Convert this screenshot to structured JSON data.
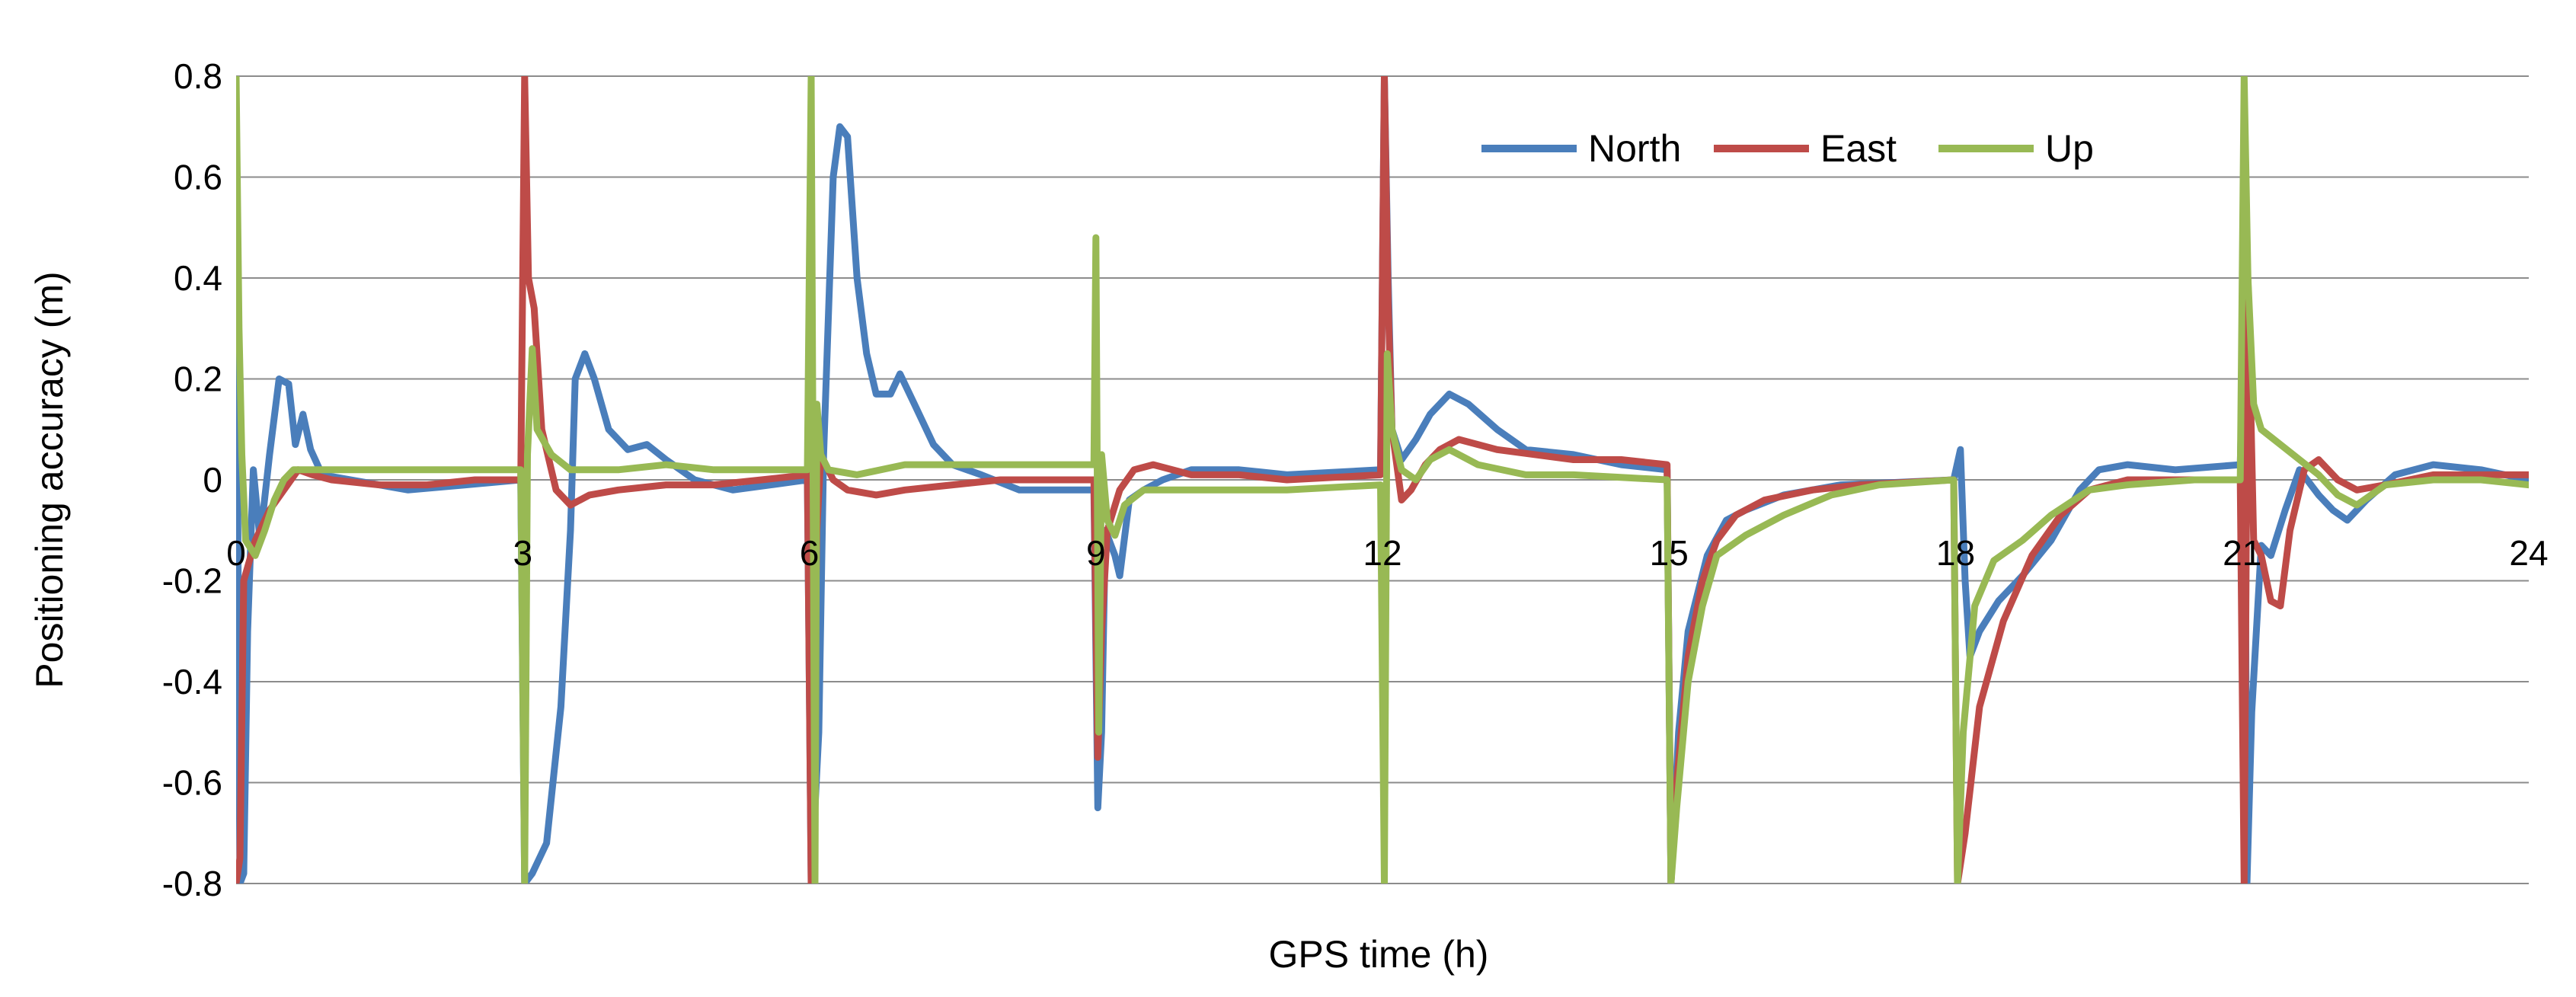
{
  "chart_data": {
    "type": "line",
    "title": "",
    "xlabel": "GPS time (h)",
    "ylabel": "Positioning accuracy (m)",
    "xlim": [
      0,
      24
    ],
    "ylim": [
      -0.8,
      0.8
    ],
    "xticks": [
      0,
      3,
      6,
      9,
      12,
      15,
      18,
      21,
      24
    ],
    "yticks": [
      -0.8,
      -0.6,
      -0.4,
      -0.2,
      0,
      0.2,
      0.4,
      0.6,
      0.8
    ],
    "ytick_labels": [
      "-0.8",
      "-0.6",
      "-0.4",
      "-0.2",
      "0",
      "0.2",
      "0.4",
      "0.6",
      "0.8"
    ],
    "grid": "horizontal",
    "legend_position": "top-center",
    "series": [
      {
        "name": "North",
        "color": "#4a7ebb",
        "points": [
          [
            0,
            0.5
          ],
          [
            0.04,
            -0.8
          ],
          [
            0.08,
            -0.78
          ],
          [
            0.12,
            -0.3
          ],
          [
            0.18,
            0.02
          ],
          [
            0.25,
            -0.12
          ],
          [
            0.35,
            0.05
          ],
          [
            0.45,
            0.2
          ],
          [
            0.55,
            0.19
          ],
          [
            0.62,
            0.07
          ],
          [
            0.7,
            0.13
          ],
          [
            0.78,
            0.06
          ],
          [
            0.9,
            0.01
          ],
          [
            1.2,
            0.0
          ],
          [
            1.8,
            -0.02
          ],
          [
            2.4,
            -0.01
          ],
          [
            2.98,
            0.0
          ],
          [
            3.02,
            -0.8
          ],
          [
            3.1,
            -0.78
          ],
          [
            3.25,
            -0.72
          ],
          [
            3.4,
            -0.45
          ],
          [
            3.5,
            -0.1
          ],
          [
            3.55,
            0.2
          ],
          [
            3.65,
            0.25
          ],
          [
            3.75,
            0.2
          ],
          [
            3.9,
            0.1
          ],
          [
            4.1,
            0.06
          ],
          [
            4.3,
            0.07
          ],
          [
            4.5,
            0.04
          ],
          [
            4.8,
            0.0
          ],
          [
            5.2,
            -0.02
          ],
          [
            5.6,
            -0.01
          ],
          [
            5.98,
            0.0
          ],
          [
            6.02,
            -0.8
          ],
          [
            6.1,
            -0.5
          ],
          [
            6.15,
            0.05
          ],
          [
            6.25,
            0.6
          ],
          [
            6.32,
            0.7
          ],
          [
            6.4,
            0.68
          ],
          [
            6.5,
            0.4
          ],
          [
            6.6,
            0.25
          ],
          [
            6.7,
            0.17
          ],
          [
            6.85,
            0.17
          ],
          [
            6.95,
            0.21
          ],
          [
            7.1,
            0.15
          ],
          [
            7.3,
            0.07
          ],
          [
            7.5,
            0.03
          ],
          [
            7.8,
            0.01
          ],
          [
            8.2,
            -0.02
          ],
          [
            8.98,
            -0.02
          ],
          [
            9.02,
            -0.65
          ],
          [
            9.06,
            -0.5
          ],
          [
            9.1,
            -0.1
          ],
          [
            9.2,
            -0.15
          ],
          [
            9.25,
            -0.19
          ],
          [
            9.35,
            -0.04
          ],
          [
            9.5,
            -0.02
          ],
          [
            9.7,
            0.0
          ],
          [
            10.0,
            0.02
          ],
          [
            10.5,
            0.02
          ],
          [
            11.0,
            0.01
          ],
          [
            11.98,
            0.02
          ],
          [
            12.02,
            0.8
          ],
          [
            12.06,
            0.4
          ],
          [
            12.1,
            0.1
          ],
          [
            12.2,
            0.04
          ],
          [
            12.35,
            0.08
          ],
          [
            12.5,
            0.13
          ],
          [
            12.7,
            0.17
          ],
          [
            12.9,
            0.15
          ],
          [
            13.2,
            0.1
          ],
          [
            13.5,
            0.06
          ],
          [
            14.0,
            0.05
          ],
          [
            14.5,
            0.03
          ],
          [
            14.98,
            0.02
          ],
          [
            15.02,
            -0.8
          ],
          [
            15.1,
            -0.5
          ],
          [
            15.2,
            -0.3
          ],
          [
            15.4,
            -0.15
          ],
          [
            15.6,
            -0.08
          ],
          [
            15.8,
            -0.06
          ],
          [
            16.2,
            -0.03
          ],
          [
            16.8,
            -0.01
          ],
          [
            17.98,
            0.0
          ],
          [
            18.05,
            0.06
          ],
          [
            18.1,
            -0.2
          ],
          [
            18.15,
            -0.35
          ],
          [
            18.25,
            -0.3
          ],
          [
            18.45,
            -0.24
          ],
          [
            18.7,
            -0.19
          ],
          [
            19.0,
            -0.12
          ],
          [
            19.3,
            -0.02
          ],
          [
            19.5,
            0.02
          ],
          [
            19.8,
            0.03
          ],
          [
            20.3,
            0.02
          ],
          [
            20.98,
            0.03
          ],
          [
            21.02,
            0.35
          ],
          [
            21.05,
            -0.8
          ],
          [
            21.1,
            -0.46
          ],
          [
            21.2,
            -0.13
          ],
          [
            21.3,
            -0.15
          ],
          [
            21.45,
            -0.06
          ],
          [
            21.6,
            0.02
          ],
          [
            21.8,
            -0.03
          ],
          [
            21.95,
            -0.06
          ],
          [
            22.1,
            -0.08
          ],
          [
            22.3,
            -0.04
          ],
          [
            22.6,
            0.01
          ],
          [
            23.0,
            0.03
          ],
          [
            23.5,
            0.02
          ],
          [
            24,
            0.0
          ]
        ]
      },
      {
        "name": "East",
        "color": "#be4b48",
        "points": [
          [
            0,
            -0.8
          ],
          [
            0.04,
            -0.75
          ],
          [
            0.08,
            -0.2
          ],
          [
            0.2,
            -0.12
          ],
          [
            0.35,
            -0.06
          ],
          [
            0.5,
            -0.02
          ],
          [
            0.65,
            0.02
          ],
          [
            0.8,
            0.01
          ],
          [
            1.0,
            0.0
          ],
          [
            1.5,
            -0.01
          ],
          [
            2.0,
            -0.01
          ],
          [
            2.5,
            0.0
          ],
          [
            2.98,
            0.0
          ],
          [
            3.02,
            0.8
          ],
          [
            3.06,
            0.4
          ],
          [
            3.12,
            0.34
          ],
          [
            3.2,
            0.1
          ],
          [
            3.35,
            -0.02
          ],
          [
            3.5,
            -0.05
          ],
          [
            3.7,
            -0.03
          ],
          [
            4.0,
            -0.02
          ],
          [
            4.5,
            -0.01
          ],
          [
            5.0,
            -0.01
          ],
          [
            5.5,
            0.0
          ],
          [
            5.98,
            0.01
          ],
          [
            6.02,
            -0.8
          ],
          [
            6.08,
            -0.1
          ],
          [
            6.12,
            0.05
          ],
          [
            6.25,
            0.0
          ],
          [
            6.4,
            -0.02
          ],
          [
            6.7,
            -0.03
          ],
          [
            7.0,
            -0.02
          ],
          [
            7.5,
            -0.01
          ],
          [
            8.0,
            0.0
          ],
          [
            8.98,
            0.0
          ],
          [
            9.02,
            -0.55
          ],
          [
            9.06,
            -0.3
          ],
          [
            9.12,
            -0.1
          ],
          [
            9.25,
            -0.02
          ],
          [
            9.4,
            0.02
          ],
          [
            9.6,
            0.03
          ],
          [
            10.0,
            0.01
          ],
          [
            10.5,
            0.01
          ],
          [
            11.0,
            0.0
          ],
          [
            11.98,
            0.01
          ],
          [
            12.02,
            0.8
          ],
          [
            12.06,
            0.35
          ],
          [
            12.1,
            0.1
          ],
          [
            12.2,
            -0.04
          ],
          [
            12.3,
            -0.02
          ],
          [
            12.45,
            0.03
          ],
          [
            12.6,
            0.06
          ],
          [
            12.8,
            0.08
          ],
          [
            13.2,
            0.06
          ],
          [
            13.6,
            0.05
          ],
          [
            14.0,
            0.04
          ],
          [
            14.5,
            0.04
          ],
          [
            14.98,
            0.03
          ],
          [
            15.02,
            -0.8
          ],
          [
            15.08,
            -0.6
          ],
          [
            15.2,
            -0.35
          ],
          [
            15.35,
            -0.2
          ],
          [
            15.5,
            -0.12
          ],
          [
            15.7,
            -0.07
          ],
          [
            16.0,
            -0.04
          ],
          [
            16.5,
            -0.02
          ],
          [
            17.0,
            -0.01
          ],
          [
            17.98,
            0.0
          ],
          [
            18.02,
            -0.8
          ],
          [
            18.1,
            -0.7
          ],
          [
            18.25,
            -0.45
          ],
          [
            18.5,
            -0.28
          ],
          [
            18.8,
            -0.15
          ],
          [
            19.1,
            -0.07
          ],
          [
            19.4,
            -0.02
          ],
          [
            19.8,
            0.0
          ],
          [
            20.5,
            0.0
          ],
          [
            20.98,
            0.0
          ],
          [
            21.02,
            -0.8
          ],
          [
            21.06,
            0.4
          ],
          [
            21.12,
            -0.12
          ],
          [
            21.2,
            -0.15
          ],
          [
            21.3,
            -0.24
          ],
          [
            21.4,
            -0.25
          ],
          [
            21.5,
            -0.1
          ],
          [
            21.65,
            0.02
          ],
          [
            21.8,
            0.04
          ],
          [
            22.0,
            0.0
          ],
          [
            22.2,
            -0.02
          ],
          [
            22.5,
            -0.01
          ],
          [
            23.0,
            0.01
          ],
          [
            23.5,
            0.01
          ],
          [
            24,
            0.01
          ]
        ]
      },
      {
        "name": "Up",
        "color": "#98b954",
        "points": [
          [
            0,
            0.8
          ],
          [
            0.03,
            0.3
          ],
          [
            0.06,
            0.05
          ],
          [
            0.1,
            -0.12
          ],
          [
            0.2,
            -0.15
          ],
          [
            0.3,
            -0.1
          ],
          [
            0.4,
            -0.04
          ],
          [
            0.5,
            0.0
          ],
          [
            0.6,
            0.02
          ],
          [
            0.8,
            0.02
          ],
          [
            1.5,
            0.02
          ],
          [
            2.2,
            0.02
          ],
          [
            2.98,
            0.02
          ],
          [
            3.02,
            -0.8
          ],
          [
            3.05,
            0.05
          ],
          [
            3.1,
            0.26
          ],
          [
            3.15,
            0.1
          ],
          [
            3.3,
            0.05
          ],
          [
            3.5,
            0.02
          ],
          [
            4.0,
            0.02
          ],
          [
            4.5,
            0.03
          ],
          [
            5.0,
            0.02
          ],
          [
            5.98,
            0.02
          ],
          [
            6.02,
            0.8
          ],
          [
            6.06,
            -0.8
          ],
          [
            6.08,
            0.15
          ],
          [
            6.12,
            0.05
          ],
          [
            6.2,
            0.02
          ],
          [
            6.5,
            0.01
          ],
          [
            7.0,
            0.03
          ],
          [
            7.5,
            0.03
          ],
          [
            8.0,
            0.03
          ],
          [
            8.98,
            0.03
          ],
          [
            9.0,
            0.48
          ],
          [
            9.03,
            -0.5
          ],
          [
            9.06,
            0.05
          ],
          [
            9.12,
            -0.08
          ],
          [
            9.2,
            -0.11
          ],
          [
            9.3,
            -0.05
          ],
          [
            9.5,
            -0.02
          ],
          [
            10.0,
            -0.02
          ],
          [
            10.5,
            -0.02
          ],
          [
            11.0,
            -0.02
          ],
          [
            11.98,
            -0.01
          ],
          [
            12.02,
            -0.8
          ],
          [
            12.05,
            0.25
          ],
          [
            12.1,
            0.1
          ],
          [
            12.2,
            0.02
          ],
          [
            12.35,
            0.0
          ],
          [
            12.5,
            0.04
          ],
          [
            12.7,
            0.06
          ],
          [
            13.0,
            0.03
          ],
          [
            13.5,
            0.01
          ],
          [
            14.0,
            0.01
          ],
          [
            14.98,
            0.0
          ],
          [
            15.02,
            -0.8
          ],
          [
            15.08,
            -0.65
          ],
          [
            15.2,
            -0.4
          ],
          [
            15.35,
            -0.25
          ],
          [
            15.5,
            -0.15
          ],
          [
            15.8,
            -0.11
          ],
          [
            16.2,
            -0.07
          ],
          [
            16.7,
            -0.03
          ],
          [
            17.2,
            -0.01
          ],
          [
            17.98,
            0.0
          ],
          [
            18.02,
            -0.8
          ],
          [
            18.08,
            -0.5
          ],
          [
            18.2,
            -0.25
          ],
          [
            18.4,
            -0.16
          ],
          [
            18.7,
            -0.12
          ],
          [
            19.0,
            -0.07
          ],
          [
            19.4,
            -0.02
          ],
          [
            19.8,
            -0.01
          ],
          [
            20.5,
            0.0
          ],
          [
            20.98,
            0.0
          ],
          [
            21.02,
            0.8
          ],
          [
            21.06,
            0.4
          ],
          [
            21.12,
            0.15
          ],
          [
            21.2,
            0.1
          ],
          [
            21.4,
            0.07
          ],
          [
            21.6,
            0.04
          ],
          [
            21.8,
            0.01
          ],
          [
            22.0,
            -0.03
          ],
          [
            22.2,
            -0.05
          ],
          [
            22.5,
            -0.01
          ],
          [
            23.0,
            0.0
          ],
          [
            23.5,
            0.0
          ],
          [
            24,
            -0.01
          ]
        ]
      }
    ]
  }
}
